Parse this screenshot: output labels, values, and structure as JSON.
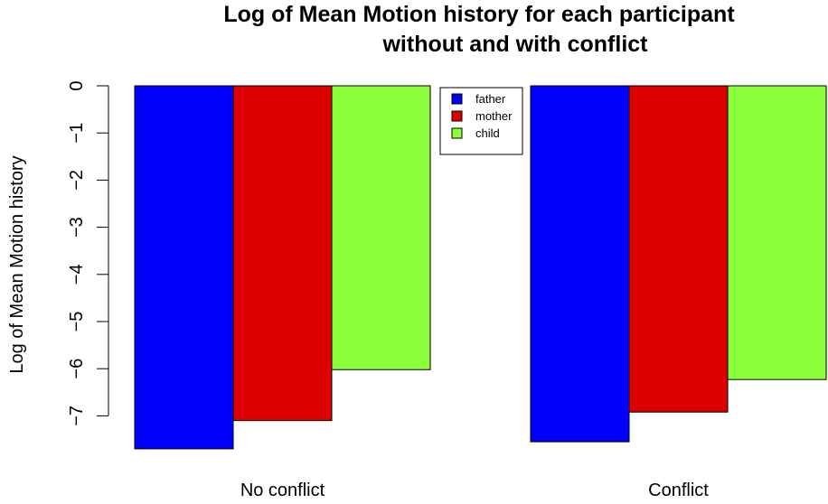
{
  "chart_data": {
    "type": "bar",
    "title_lines": [
      "Log of Mean Motion history for each participant",
      "without and with conflict"
    ],
    "ylabel": "Log of Mean Motion history",
    "xlabel": "",
    "categories": [
      "No conflict",
      "Conflict"
    ],
    "series": [
      {
        "name": "father",
        "color": "#0000FF",
        "values": [
          -7.7,
          -7.55
        ]
      },
      {
        "name": "mother",
        "color": "#DD0000",
        "values": [
          -7.1,
          -6.92
        ]
      },
      {
        "name": "child",
        "color": "#8CFF3C",
        "values": [
          -6.02,
          -6.23
        ]
      }
    ],
    "yticks": [
      "0",
      "−1",
      "−2",
      "−3",
      "−4",
      "−5",
      "−6",
      "−7"
    ],
    "ylim": [
      -7.7,
      0
    ],
    "legend_position": "top-center",
    "grid": false
  }
}
